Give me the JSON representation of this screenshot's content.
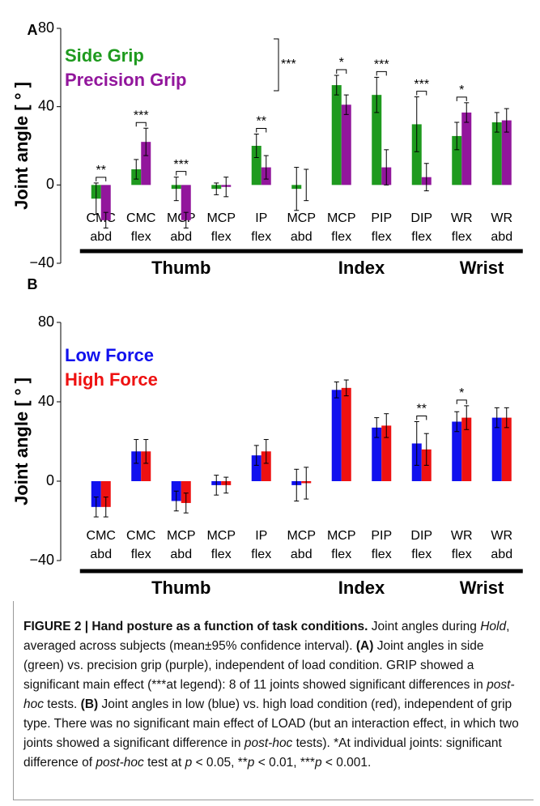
{
  "chart_data": [
    {
      "type": "bar",
      "panel_label": "A",
      "y_label": "Joint angle [ ° ]",
      "categories": [
        "CMC abd",
        "CMC flex",
        "MCP abd",
        "MCP flex",
        "IP flex",
        "MCP abd",
        "MCP flex",
        "PIP flex",
        "DIP flex",
        "WR flex",
        "WR abd"
      ],
      "series": [
        {
          "name": "Side Grip",
          "color": "#1e9a1e",
          "values": [
            -7,
            8,
            -2,
            -2,
            20,
            -2,
            51,
            46,
            31,
            25,
            32
          ],
          "errors": [
            8,
            5,
            6,
            3,
            6,
            11,
            5,
            9,
            14,
            7,
            5
          ]
        },
        {
          "name": "Precision Grip",
          "color": "#92169c",
          "values": [
            -18,
            22,
            -18,
            -1,
            9,
            0,
            41,
            9,
            4,
            37,
            33
          ],
          "errors": [
            4,
            7,
            4,
            5,
            6,
            8,
            5,
            9,
            7,
            5,
            6
          ]
        }
      ],
      "ylim": [
        -40,
        80
      ],
      "yticks": [
        {
          "value": -40,
          "label": "−40"
        },
        0,
        40,
        80
      ],
      "groups": [
        {
          "label": "Thumb",
          "start": 0,
          "end": 4
        },
        {
          "label": "Index",
          "start": 5,
          "end": 8
        },
        {
          "label": "Wrist",
          "start": 9,
          "end": 10
        }
      ],
      "annotations": [
        {
          "category": 0,
          "label": "**"
        },
        {
          "category": 1,
          "label": "***"
        },
        {
          "category": 2,
          "label": "***"
        },
        {
          "category": 4,
          "label": "**"
        },
        {
          "category": 6,
          "label": "*"
        },
        {
          "category": 7,
          "label": "***"
        },
        {
          "category": 8,
          "label": "***"
        },
        {
          "category": 9,
          "label": "*"
        }
      ],
      "legend_annotation": "***"
    },
    {
      "type": "bar",
      "panel_label": "B",
      "y_label": "Joint angle [ ° ]",
      "categories": [
        "CMC abd",
        "CMC flex",
        "MCP abd",
        "MCP flex",
        "IP flex",
        "MCP abd",
        "MCP flex",
        "PIP flex",
        "DIP flex",
        "WR flex",
        "WR abd"
      ],
      "series": [
        {
          "name": "Low Force",
          "color": "#1111ee",
          "values": [
            -13,
            15,
            -10,
            -2,
            13,
            -2,
            46,
            27,
            19,
            30,
            32
          ],
          "errors": [
            5,
            6,
            5,
            5,
            5,
            8,
            4,
            5,
            11,
            5,
            5
          ]
        },
        {
          "name": "High Force",
          "color": "#ee1111",
          "values": [
            -13,
            15,
            -11,
            -2,
            15,
            -1,
            47,
            28,
            16,
            32,
            32
          ],
          "errors": [
            5,
            6,
            5,
            4,
            6,
            8,
            4,
            6,
            8,
            6,
            5
          ]
        }
      ],
      "ylim": [
        -40,
        80
      ],
      "yticks": [
        {
          "value": -40,
          "label": "−40"
        },
        0,
        40,
        80
      ],
      "groups": [
        {
          "label": "Thumb",
          "start": 0,
          "end": 4
        },
        {
          "label": "Index",
          "start": 5,
          "end": 8
        },
        {
          "label": "Wrist",
          "start": 9,
          "end": 10
        }
      ],
      "annotations": [
        {
          "category": 8,
          "label": "**"
        },
        {
          "category": 9,
          "label": "*"
        }
      ]
    }
  ],
  "caption": [
    {
      "text": "FIGURE 2 | Hand posture as a function of task conditions.",
      "style": "bold"
    },
    {
      "text": " Joint angles during ",
      "style": "normal"
    },
    {
      "text": "Hold",
      "style": "italic"
    },
    {
      "text": ", averaged across subjects (mean±95% confidence interval). ",
      "style": "normal"
    },
    {
      "text": "(A)",
      "style": "bold"
    },
    {
      "text": " Joint angles in side (green) vs. precision grip (purple), independent of load condition. GRIP showed a significant main effect (***at legend): 8 of 11 joints showed significant differences in ",
      "style": "normal"
    },
    {
      "text": "post-hoc",
      "style": "italic"
    },
    {
      "text": " tests. ",
      "style": "normal"
    },
    {
      "text": "(B)",
      "style": "bold"
    },
    {
      "text": " Joint angles in low (blue) vs. high load condition (red), independent of grip type. There was no significant main effect of LOAD (but an interaction effect, in which two joints showed a significant difference in ",
      "style": "normal"
    },
    {
      "text": "post-hoc",
      "style": "italic"
    },
    {
      "text": " tests). *At individual joints: significant difference of ",
      "style": "normal"
    },
    {
      "text": "post-hoc",
      "style": "italic"
    },
    {
      "text": " test at ",
      "style": "normal"
    },
    {
      "text": "p",
      "style": "italic"
    },
    {
      "text": " < 0.05, **",
      "style": "normal"
    },
    {
      "text": "p",
      "style": "italic"
    },
    {
      "text": " < 0.01, ***",
      "style": "normal"
    },
    {
      "text": "p",
      "style": "italic"
    },
    {
      "text": " < 0.001.",
      "style": "normal"
    }
  ]
}
